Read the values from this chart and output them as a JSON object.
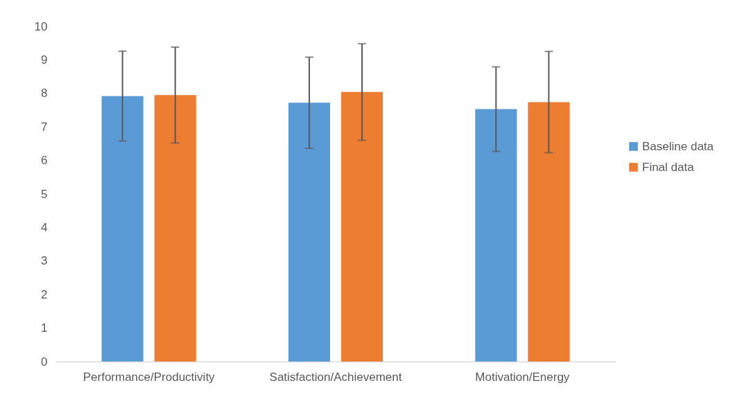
{
  "chart_data": {
    "type": "bar",
    "categories": [
      "Performance/Productivity",
      "Satisfaction/Achievement",
      "Motivation/Energy"
    ],
    "series": [
      {
        "name": "Baseline data",
        "color": "#5b9bd5",
        "values": [
          7.92,
          7.72,
          7.53
        ],
        "errors": [
          1.34,
          1.36,
          1.26
        ]
      },
      {
        "name": "Final data",
        "color": "#ed7d31",
        "values": [
          7.95,
          8.04,
          7.74
        ],
        "errors": [
          1.43,
          1.44,
          1.51
        ]
      }
    ],
    "ylim": [
      0,
      10
    ],
    "yticks": [
      0,
      1,
      2,
      3,
      4,
      5,
      6,
      7,
      8,
      9,
      10
    ],
    "grid": false,
    "legend": "right"
  }
}
